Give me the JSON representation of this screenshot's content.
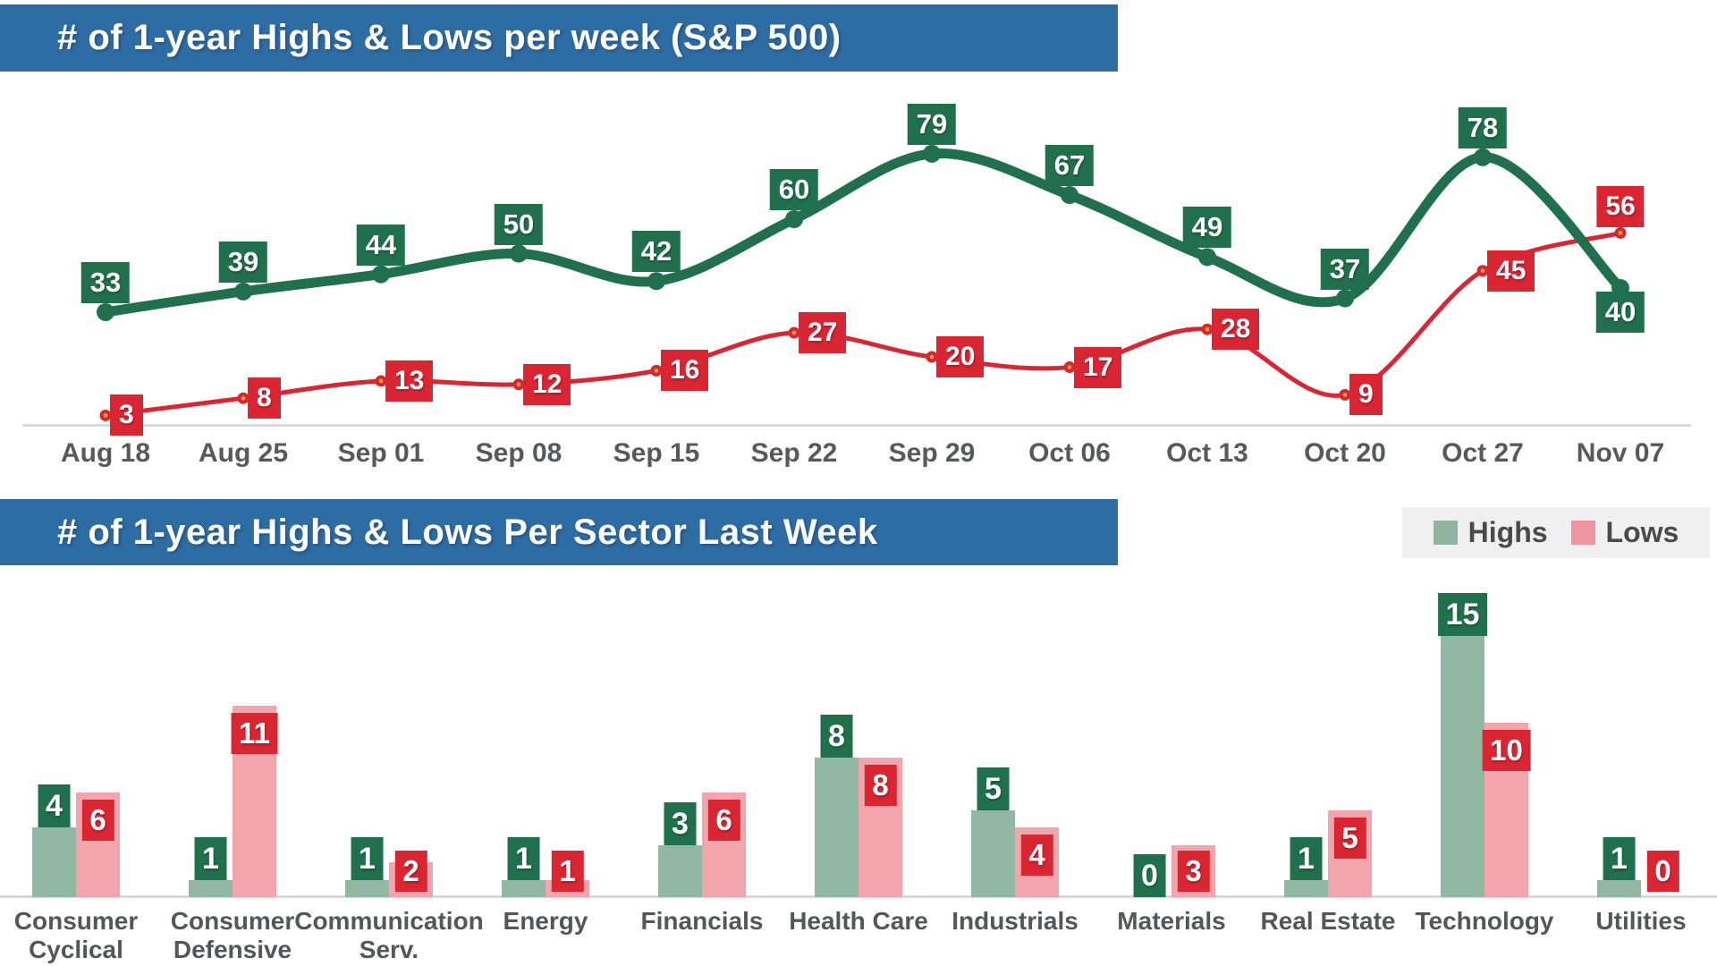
{
  "chart_data": [
    {
      "type": "line",
      "title": "# of 1-year Highs & Lows per week (S&P 500)",
      "x_labels": [
        "Aug 18",
        "Aug 25",
        "Sep 01",
        "Sep 08",
        "Sep 15",
        "Sep 22",
        "Sep 29",
        "Oct 06",
        "Oct 13",
        "Oct 20",
        "Oct 27",
        "Nov 07"
      ],
      "series": [
        {
          "name": "Highs",
          "color": "#20704E",
          "values": [
            33,
            39,
            44,
            50,
            42,
            60,
            79,
            67,
            49,
            37,
            78,
            40
          ]
        },
        {
          "name": "Lows",
          "color": "#DA2533",
          "marker_center_color": "#F2A338",
          "values": [
            3,
            8,
            13,
            12,
            16,
            27,
            20,
            17,
            28,
            9,
            45,
            56
          ]
        }
      ],
      "ylim": [
        0,
        85
      ],
      "grid": false,
      "legend_position": "none"
    },
    {
      "type": "bar",
      "title": "# of 1-year Highs & Lows Per Sector Last Week",
      "categories": [
        "Consumer Cyclical",
        "Consumer Defensive",
        "Communication Serv.",
        "Energy",
        "Financials",
        "Health Care",
        "Industrials",
        "Materials",
        "Real Estate",
        "Technology",
        "Utilities"
      ],
      "category_lines": [
        [
          "Consumer",
          "Cyclical"
        ],
        [
          "Consumer",
          "Defensive"
        ],
        [
          "Communication",
          "Serv."
        ],
        [
          "Energy"
        ],
        [
          "Financials"
        ],
        [
          "Health Care"
        ],
        [
          "Industrials"
        ],
        [
          "Materials"
        ],
        [
          "Real Estate"
        ],
        [
          "Technology"
        ],
        [
          "Utilities"
        ]
      ],
      "series": [
        {
          "name": "Highs",
          "bar_color": "#92B8A3",
          "label_color": "#20704E",
          "values": [
            4,
            1,
            1,
            1,
            3,
            8,
            5,
            0,
            1,
            15,
            1
          ]
        },
        {
          "name": "Lows",
          "bar_color": "#F3A5AD",
          "label_color": "#DA2533",
          "values": [
            6,
            11,
            2,
            1,
            6,
            8,
            4,
            3,
            5,
            10,
            0
          ]
        }
      ],
      "ylim": [
        0,
        16
      ],
      "grid": false,
      "legend": {
        "position": "top-right",
        "items": [
          {
            "label": "Highs",
            "swatch_color": "#8FB5A1"
          },
          {
            "label": "Lows",
            "swatch_color": "#EC95A0"
          }
        ]
      }
    }
  ],
  "styles": {
    "header_bg": "#2E6CA4",
    "header_text_color": "#FFFFFF",
    "axis_line_color": "#D9D9D9",
    "tick_color": "#58595B",
    "sector_label_color": "#555658",
    "legend_bg": "#F0F0F0",
    "legend_text_color": "#4A4A4B"
  }
}
